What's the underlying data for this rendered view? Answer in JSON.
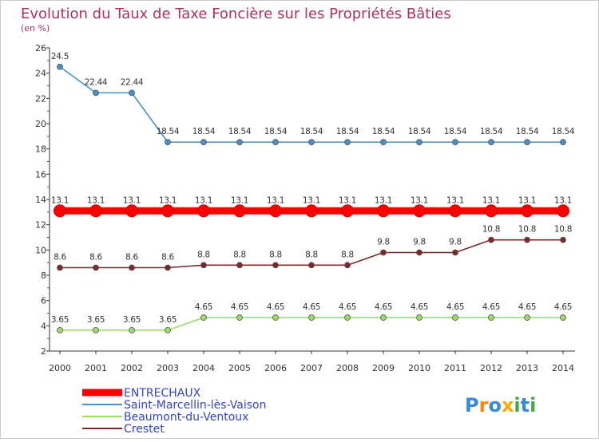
{
  "chart_data": {
    "type": "line",
    "title": "Evolution du Taux de Taxe Foncière sur les Propriétés Bâties",
    "subtitle": "(en %)",
    "xlabel": "",
    "ylabel": "",
    "x": [
      "2000",
      "2001",
      "2002",
      "2003",
      "2004",
      "2005",
      "2006",
      "2007",
      "2008",
      "2009",
      "2010",
      "2011",
      "2012",
      "2013",
      "2014"
    ],
    "yticks": [
      2,
      4,
      6,
      8,
      10,
      12,
      14,
      16,
      18,
      20,
      22,
      24,
      26
    ],
    "ylim": [
      2,
      26
    ],
    "grid": false,
    "legend_position": "bottom-left",
    "series": [
      {
        "name": "ENTRECHAUX",
        "color": "#ff0000",
        "values": [
          13.1,
          13.1,
          13.1,
          13.1,
          13.1,
          13.1,
          13.1,
          13.1,
          13.1,
          13.1,
          13.1,
          13.1,
          13.1,
          13.1,
          13.1
        ],
        "labels": [
          "13.1",
          "13.1",
          "13.1",
          "13.1",
          "13.1",
          "13.1",
          "13.1",
          "13.1",
          "13.1",
          "13.1",
          "13.1",
          "13.1",
          "13.1",
          "13.1",
          "13.1"
        ]
      },
      {
        "name": "Saint-Marcellin-lès-Vaison",
        "color": "#4a90c8",
        "values": [
          24.5,
          22.44,
          22.44,
          18.54,
          18.54,
          18.54,
          18.54,
          18.54,
          18.54,
          18.54,
          18.54,
          18.54,
          18.54,
          18.54,
          18.54
        ],
        "labels": [
          "24.5",
          "22.44",
          "22.44",
          "18.54",
          "18.54",
          "18.54",
          "18.54",
          "18.54",
          "18.54",
          "18.54",
          "18.54",
          "18.54",
          "18.54",
          "18.54",
          "18.54"
        ]
      },
      {
        "name": "Beaumont-du-Ventoux",
        "color": "#99dd66",
        "values": [
          3.65,
          3.65,
          3.65,
          3.65,
          4.65,
          4.65,
          4.65,
          4.65,
          4.65,
          4.65,
          4.65,
          4.65,
          4.65,
          4.65,
          4.65
        ],
        "labels": [
          "3.65",
          "3.65",
          "3.65",
          "3.65",
          "4.65",
          "4.65",
          "4.65",
          "4.65",
          "4.65",
          "4.65",
          "4.65",
          "4.65",
          "4.65",
          "4.65",
          "4.65"
        ]
      },
      {
        "name": "Crestet",
        "color": "#7a2a2a",
        "values": [
          8.6,
          8.6,
          8.6,
          8.6,
          8.8,
          8.8,
          8.8,
          8.8,
          8.8,
          9.8,
          9.8,
          9.8,
          10.8,
          10.8,
          10.8
        ],
        "labels": [
          "8.6",
          "8.6",
          "8.6",
          "8.6",
          "8.8",
          "8.8",
          "8.8",
          "8.8",
          "8.8",
          "9.8",
          "9.8",
          "9.8",
          "10.8",
          "10.8",
          "10.8"
        ]
      }
    ]
  },
  "logo": {
    "text": "Proxiti"
  }
}
